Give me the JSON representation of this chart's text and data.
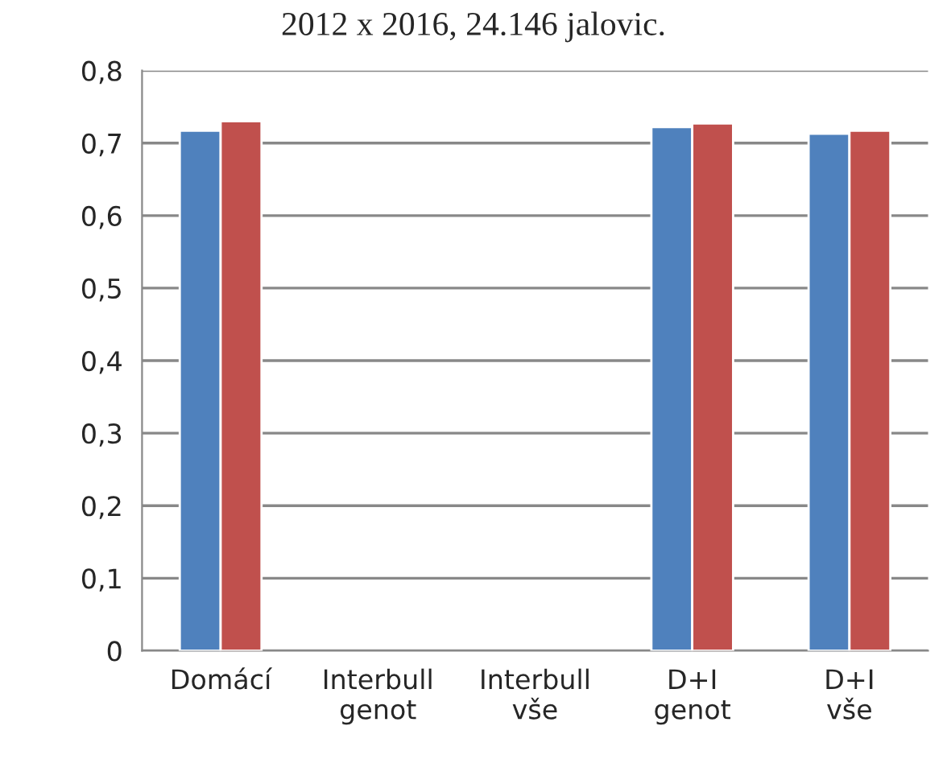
{
  "chart_data": {
    "type": "bar",
    "title": "2012 x 2016, 24.146 jalovic.",
    "categories": [
      "Domácí",
      "Interbull\ngenot",
      "Interbull\nvše",
      "D+I\ngenot",
      "D+I\nvše"
    ],
    "series": [
      {
        "color": "#4f81bd",
        "values": [
          0.717,
          null,
          null,
          0.722,
          0.713
        ]
      },
      {
        "color": "#c0504d",
        "values": [
          0.73,
          null,
          null,
          0.727,
          0.717
        ]
      }
    ],
    "ylim": [
      0,
      0.8
    ],
    "yticks": [
      {
        "value": 0,
        "label": "0"
      },
      {
        "value": 0.1,
        "label": "0,1"
      },
      {
        "value": 0.2,
        "label": "0,2"
      },
      {
        "value": 0.3,
        "label": "0,3"
      },
      {
        "value": 0.4,
        "label": "0,4"
      },
      {
        "value": 0.5,
        "label": "0,5"
      },
      {
        "value": 0.6,
        "label": "0,6"
      },
      {
        "value": 0.7,
        "label": "0,7"
      },
      {
        "value": 0.8,
        "label": "0,8"
      }
    ],
    "grid": "y"
  }
}
